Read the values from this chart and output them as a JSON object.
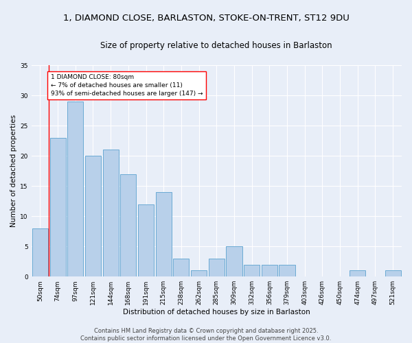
{
  "title_line1": "1, DIAMOND CLOSE, BARLASTON, STOKE-ON-TRENT, ST12 9DU",
  "title_line2": "Size of property relative to detached houses in Barlaston",
  "xlabel": "Distribution of detached houses by size in Barlaston",
  "ylabel": "Number of detached properties",
  "categories": [
    "50sqm",
    "74sqm",
    "97sqm",
    "121sqm",
    "144sqm",
    "168sqm",
    "191sqm",
    "215sqm",
    "238sqm",
    "262sqm",
    "285sqm",
    "309sqm",
    "332sqm",
    "356sqm",
    "379sqm",
    "403sqm",
    "426sqm",
    "450sqm",
    "474sqm",
    "497sqm",
    "521sqm"
  ],
  "values": [
    8,
    23,
    29,
    20,
    21,
    17,
    12,
    14,
    3,
    1,
    3,
    5,
    2,
    2,
    2,
    0,
    0,
    0,
    1,
    0,
    1
  ],
  "bar_color": "#b8d0ea",
  "bar_edge_color": "#6aaad4",
  "annotation_text": "1 DIAMOND CLOSE: 80sqm\n← 7% of detached houses are smaller (11)\n93% of semi-detached houses are larger (147) →",
  "annotation_box_color": "white",
  "annotation_box_edge_color": "red",
  "vline_color": "red",
  "vline_x_pos": 0.5,
  "ylim": [
    0,
    35
  ],
  "yticks": [
    0,
    5,
    10,
    15,
    20,
    25,
    30,
    35
  ],
  "background_color": "#e8eef8",
  "grid_color": "white",
  "footer_line1": "Contains HM Land Registry data © Crown copyright and database right 2025.",
  "footer_line2": "Contains public sector information licensed under the Open Government Licence v3.0.",
  "title_fontsize": 9.5,
  "subtitle_fontsize": 8.5,
  "axis_label_fontsize": 7.5,
  "tick_fontsize": 6.5,
  "annotation_fontsize": 6.5,
  "footer_fontsize": 6.0
}
